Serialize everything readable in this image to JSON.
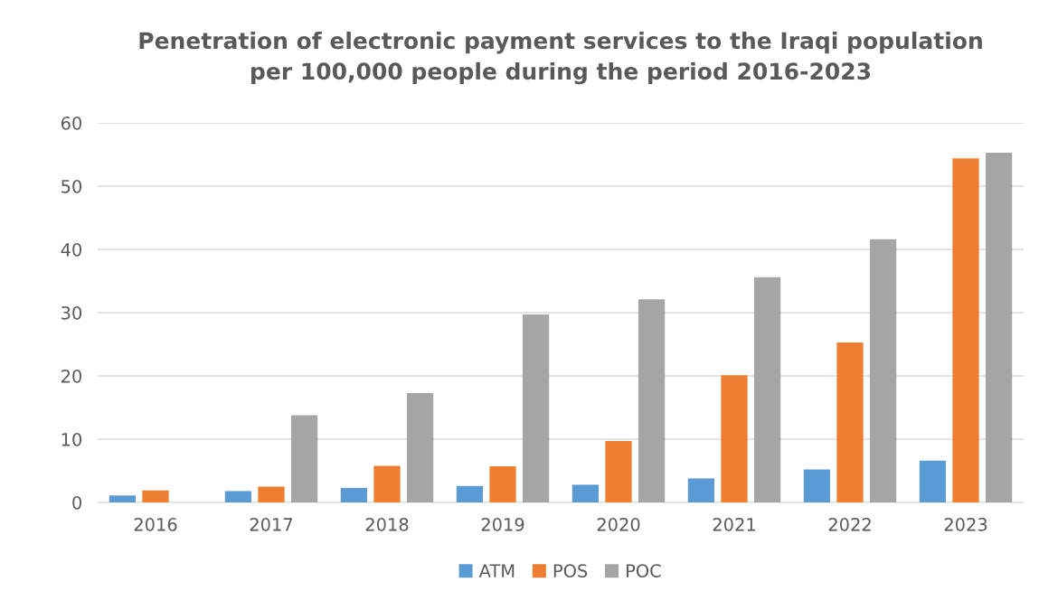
{
  "chart_data": {
    "type": "bar",
    "title": "Penetration of electronic payment services to the Iraqi population\nper 100,000 people during the period 2016-2023",
    "categories": [
      "2016",
      "2017",
      "2018",
      "2019",
      "2020",
      "2021",
      "2022",
      "2023"
    ],
    "series": [
      {
        "name": "ATM",
        "color": "#5b9bd5",
        "values": [
          1.1,
          1.8,
          2.3,
          2.6,
          2.8,
          3.8,
          5.2,
          6.6
        ]
      },
      {
        "name": "POS",
        "color": "#ed7d31",
        "values": [
          1.9,
          2.5,
          5.8,
          5.7,
          9.7,
          20.1,
          25.3,
          54.4
        ]
      },
      {
        "name": "POC",
        "color": "#a5a5a5",
        "values": [
          0,
          13.8,
          17.3,
          29.7,
          32.1,
          35.6,
          41.6,
          55.3
        ]
      }
    ],
    "ylim": [
      0,
      60
    ],
    "yticks": [
      0,
      10,
      20,
      30,
      40,
      50,
      60
    ],
    "grid": "y",
    "legend": "bottom"
  }
}
